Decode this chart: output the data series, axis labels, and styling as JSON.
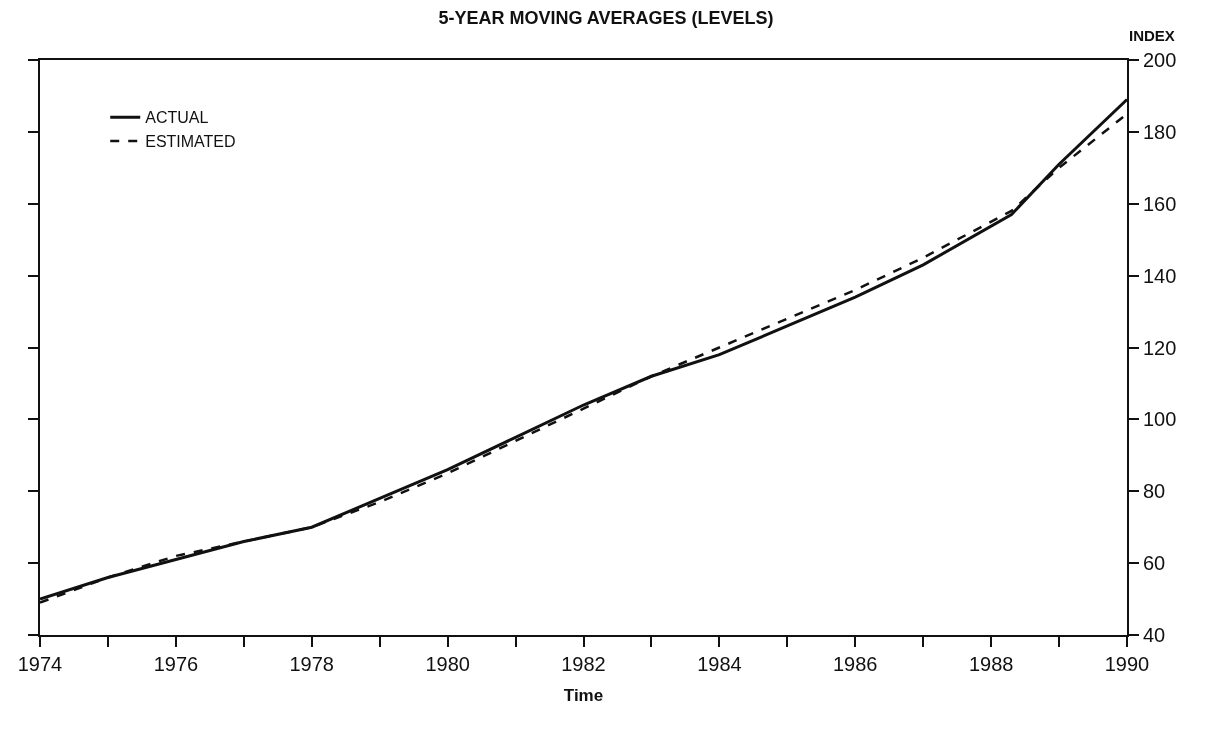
{
  "chart_data": {
    "type": "line",
    "title": "5-YEAR MOVING AVERAGES (LEVELS)",
    "xlabel": "Time",
    "ylabel": "INDEX",
    "series": [
      {
        "name": "ACTUAL",
        "color": "#111111",
        "line_style": "solid",
        "x": [
          1974,
          1975,
          1976,
          1977,
          1978,
          1979,
          1980,
          1981,
          1982,
          1983,
          1984,
          1985,
          1986,
          1987,
          1988.3,
          1989,
          1990
        ],
        "values": [
          50,
          56,
          61,
          66,
          70,
          78,
          86,
          95,
          104,
          112,
          118,
          126,
          134,
          143,
          157,
          171,
          189
        ]
      },
      {
        "name": "ESTIMATED",
        "color": "#111111",
        "line_style": "dashed",
        "x": [
          1974,
          1975,
          1976,
          1977,
          1978,
          1979,
          1980,
          1981,
          1982,
          1983,
          1984,
          1985,
          1986,
          1987,
          1988.3,
          1989,
          1990
        ],
        "values": [
          49,
          56,
          62,
          66,
          70,
          77,
          85,
          94,
          103,
          112,
          120,
          128,
          136,
          145,
          158,
          170,
          185
        ]
      }
    ],
    "xlim": [
      1974,
      1990
    ],
    "xticks": [
      1974,
      {
        "value": 1975,
        "label": null
      },
      1976,
      {
        "value": 1977,
        "label": null
      },
      1978,
      {
        "value": 1979,
        "label": null
      },
      1980,
      {
        "value": 1981,
        "label": null
      },
      1982,
      {
        "value": 1983,
        "label": null
      },
      1984,
      {
        "value": 1985,
        "label": null
      },
      1986,
      {
        "value": 1987,
        "label": null
      },
      1988,
      {
        "value": 1989,
        "label": null
      },
      1990
    ],
    "ylim": [
      40,
      200
    ],
    "yticks": [
      40,
      60,
      80,
      100,
      120,
      140,
      160,
      180,
      200
    ],
    "legend": "top left",
    "marker": "none"
  }
}
